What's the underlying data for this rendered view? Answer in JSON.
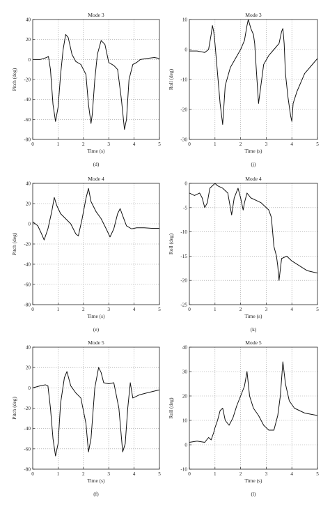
{
  "chart_data": [
    {
      "type": "line",
      "panel": "(d)",
      "title": "Mode 3",
      "xlabel": "Time (s)",
      "ylabel": "Pitch (deg)",
      "xlim": [
        0,
        5
      ],
      "ylim": [
        -80,
        40
      ],
      "xticks": [
        0,
        1,
        2,
        3,
        4,
        5
      ],
      "yticks": [
        -80,
        -60,
        -40,
        -20,
        0,
        20,
        40
      ],
      "grid": true,
      "series": [
        {
          "x": [
            0,
            0.3,
            0.55,
            0.62,
            0.7,
            0.8,
            0.9,
            1.0,
            1.1,
            1.2,
            1.3,
            1.4,
            1.55,
            1.7,
            1.9,
            2.1,
            2.2,
            2.3,
            2.35,
            2.45,
            2.55,
            2.7,
            2.85,
            3.0,
            3.2,
            3.35,
            3.5,
            3.62,
            3.7,
            3.8,
            3.95,
            4.1,
            4.25,
            4.5,
            4.8,
            5.0
          ],
          "y": [
            0,
            0,
            2,
            3,
            -10,
            -45,
            -62,
            -48,
            -15,
            10,
            25,
            22,
            5,
            -2,
            -5,
            -15,
            -45,
            -64,
            -55,
            -20,
            5,
            19,
            15,
            -3,
            -6,
            -10,
            -40,
            -70,
            -60,
            -20,
            -5,
            -3,
            0,
            1,
            2,
            1
          ]
        }
      ]
    },
    {
      "type": "line",
      "panel": "(j)",
      "title": "Mode 3",
      "xlabel": "Time (s)",
      "ylabel": "Roll (deg)",
      "xlim": [
        0,
        5
      ],
      "ylim": [
        -30,
        10
      ],
      "xticks": [
        0,
        1,
        2,
        3,
        4,
        5
      ],
      "yticks": [
        -30,
        -20,
        -10,
        0,
        10
      ],
      "grid": true,
      "series": [
        {
          "x": [
            0,
            0.3,
            0.6,
            0.75,
            0.85,
            0.9,
            0.95,
            1.0,
            1.1,
            1.2,
            1.3,
            1.4,
            1.6,
            1.8,
            2.0,
            2.15,
            2.25,
            2.3,
            2.4,
            2.5,
            2.55,
            2.6,
            2.7,
            2.9,
            3.1,
            3.3,
            3.5,
            3.6,
            3.65,
            3.7,
            3.75,
            3.85,
            3.95,
            4.0,
            4.05,
            4.2,
            4.5,
            4.8,
            5.0
          ],
          "y": [
            -0.5,
            -0.5,
            -1,
            0,
            5,
            8,
            6,
            2,
            -8,
            -18,
            -25,
            -12,
            -6,
            -3,
            0,
            3,
            8,
            10,
            7,
            5,
            2,
            -5,
            -18,
            -5,
            -2,
            0,
            2,
            6,
            7,
            2,
            -8,
            -16,
            -22,
            -24,
            -18,
            -14,
            -8,
            -5,
            -3
          ]
        }
      ]
    },
    {
      "type": "line",
      "panel": "(e)",
      "title": "Mode 4",
      "xlabel": "Time (s)",
      "ylabel": "Pitch (deg)",
      "xlim": [
        0,
        5
      ],
      "ylim": [
        -80,
        40
      ],
      "xticks": [
        0,
        1,
        2,
        3,
        4,
        5
      ],
      "yticks": [
        -80,
        -60,
        -40,
        -20,
        0,
        20,
        40
      ],
      "grid": true,
      "series": [
        {
          "x": [
            0,
            0.2,
            0.35,
            0.45,
            0.6,
            0.75,
            0.85,
            0.95,
            1.1,
            1.3,
            1.5,
            1.7,
            1.8,
            1.95,
            2.1,
            2.2,
            2.3,
            2.5,
            2.7,
            2.9,
            3.05,
            3.2,
            3.35,
            3.45,
            3.55,
            3.7,
            3.9,
            4.1,
            4.4,
            4.7,
            5.0
          ],
          "y": [
            2,
            -2,
            -10,
            -16,
            -5,
            12,
            26,
            18,
            10,
            5,
            0,
            -10,
            -12,
            5,
            25,
            35,
            22,
            12,
            5,
            -5,
            -13,
            -5,
            10,
            15,
            8,
            -2,
            -5,
            -4,
            -4,
            -4.5,
            -4.5
          ]
        }
      ]
    },
    {
      "type": "line",
      "panel": "(k)",
      "title": "Mode 4",
      "xlabel": "Time (s)",
      "ylabel": "Roll (deg)",
      "xlim": [
        0,
        5
      ],
      "ylim": [
        -25,
        0
      ],
      "xticks": [
        0,
        1,
        2,
        3,
        4,
        5
      ],
      "yticks": [
        -25,
        -20,
        -15,
        -10,
        -5,
        0
      ],
      "grid": true,
      "series": [
        {
          "x": [
            0,
            0.2,
            0.4,
            0.5,
            0.6,
            0.7,
            0.8,
            0.9,
            1.0,
            1.1,
            1.3,
            1.5,
            1.6,
            1.65,
            1.75,
            1.9,
            2.0,
            2.1,
            2.15,
            2.25,
            2.4,
            2.6,
            2.8,
            3.0,
            3.1,
            3.2,
            3.25,
            3.3,
            3.4,
            3.45,
            3.5,
            3.6,
            3.8,
            4.0,
            4.3,
            4.6,
            5.0
          ],
          "y": [
            -2,
            -2.5,
            -2,
            -3,
            -5,
            -4,
            -1,
            -0.5,
            0,
            -0.5,
            -1,
            -2,
            -5,
            -6.5,
            -3,
            -1,
            -3,
            -5.5,
            -4,
            -2,
            -3,
            -3.5,
            -4,
            -5,
            -5.5,
            -7,
            -10,
            -13,
            -15,
            -17,
            -20,
            -15.5,
            -15,
            -16,
            -17,
            -18,
            -18.5
          ]
        }
      ]
    },
    {
      "type": "line",
      "panel": "(f)",
      "title": "Mode 5",
      "xlabel": "Time (s)",
      "ylabel": "Pitch (deg)",
      "xlim": [
        0,
        5
      ],
      "ylim": [
        -80,
        40
      ],
      "xticks": [
        0,
        1,
        2,
        3,
        4,
        5
      ],
      "yticks": [
        -80,
        -60,
        -40,
        -20,
        0,
        20,
        40
      ],
      "grid": true,
      "series": [
        {
          "x": [
            0,
            0.3,
            0.5,
            0.6,
            0.7,
            0.8,
            0.9,
            1.0,
            1.1,
            1.25,
            1.35,
            1.5,
            1.7,
            1.9,
            2.1,
            2.2,
            2.3,
            2.45,
            2.6,
            2.7,
            2.8,
            3.0,
            3.2,
            3.4,
            3.55,
            3.65,
            3.75,
            3.85,
            3.95,
            4.2,
            4.5,
            5.0
          ],
          "y": [
            0,
            2,
            3,
            2,
            -20,
            -50,
            -67,
            -55,
            -15,
            10,
            16,
            2,
            -5,
            -10,
            -35,
            -63,
            -50,
            0,
            20,
            15,
            5,
            4,
            5,
            -20,
            -63,
            -55,
            -20,
            5,
            -10,
            -7,
            -5,
            -2
          ]
        }
      ]
    },
    {
      "type": "line",
      "panel": "(l)",
      "title": "Mode 5",
      "xlabel": "Time (s)",
      "ylabel": "Roll (deg)",
      "xlim": [
        0,
        5
      ],
      "ylim": [
        -10,
        40
      ],
      "xticks": [
        0,
        1,
        2,
        3,
        4,
        5
      ],
      "yticks": [
        -10,
        0,
        10,
        20,
        30,
        40
      ],
      "grid": true,
      "series": [
        {
          "x": [
            0,
            0.3,
            0.6,
            0.75,
            0.85,
            0.95,
            1.0,
            1.1,
            1.2,
            1.3,
            1.4,
            1.55,
            1.7,
            1.85,
            2.0,
            2.15,
            2.25,
            2.35,
            2.5,
            2.7,
            2.9,
            3.1,
            3.3,
            3.45,
            3.55,
            3.65,
            3.75,
            3.9,
            4.1,
            4.5,
            5.0
          ],
          "y": [
            1,
            1.5,
            1,
            3,
            2,
            5,
            7,
            10,
            14,
            15,
            10,
            8,
            11,
            16,
            20,
            24,
            30,
            20,
            15,
            12,
            8,
            6,
            6,
            12,
            20,
            34,
            25,
            18,
            15,
            13,
            12
          ]
        }
      ]
    }
  ]
}
